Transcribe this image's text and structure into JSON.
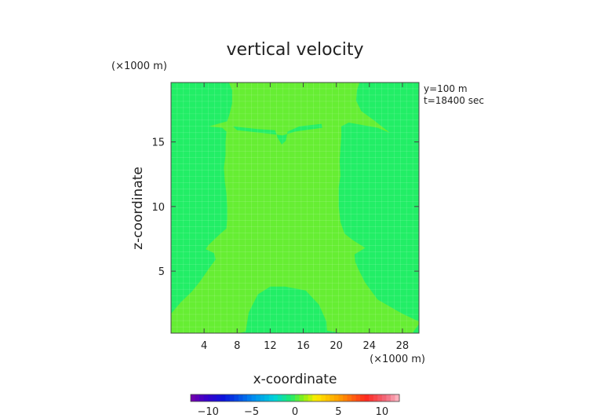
{
  "chart_data": {
    "type": "heatmap",
    "title": "vertical velocity",
    "xlabel": "x-coordinate",
    "ylabel": "z-coordinate",
    "x_unit": "(×1000 m)",
    "y_unit": "(×1000 m)",
    "annotations": [
      "y=100 m",
      "t=18400 sec"
    ],
    "xlim": [
      0,
      30
    ],
    "ylim": [
      0.2,
      19.6
    ],
    "x_ticks": [
      4,
      8,
      12,
      16,
      20,
      24,
      28
    ],
    "y_ticks": [
      5,
      10,
      15
    ],
    "colorbar": {
      "range": [
        -12,
        12
      ],
      "ticks": [
        -10,
        -5,
        0,
        5,
        10
      ]
    },
    "fields": [
      {
        "value": -0.5,
        "color": "#22ee66",
        "region": "background"
      },
      {
        "value": 0.5,
        "color": "#66ee33",
        "region": "central plume",
        "boundary": [
          [
            8.2,
            0.2
          ],
          [
            10.2,
            0.5
          ],
          [
            17.8,
            0.5
          ],
          [
            20.8,
            0.2
          ],
          [
            29.2,
            0.2
          ],
          [
            30,
            0.9
          ],
          [
            30,
            1.1
          ],
          [
            28,
            1.7
          ],
          [
            25,
            2.8
          ],
          [
            23.5,
            4.1
          ],
          [
            22.7,
            5.1
          ],
          [
            22.3,
            5.7
          ],
          [
            22.2,
            6.3
          ],
          [
            23.5,
            6.8
          ],
          [
            22,
            7.4
          ],
          [
            21,
            7.9
          ],
          [
            20.5,
            8.8
          ],
          [
            20.3,
            10
          ],
          [
            20.3,
            11.5
          ],
          [
            20.5,
            12.4
          ],
          [
            20.4,
            13.5
          ],
          [
            20.5,
            14.5
          ],
          [
            20.6,
            15.5
          ],
          [
            20.6,
            16.2
          ],
          [
            21.5,
            16.5
          ],
          [
            25,
            16.1
          ],
          [
            26.5,
            15.7
          ],
          [
            24.5,
            16.7
          ],
          [
            23,
            17.4
          ],
          [
            22.4,
            18.2
          ],
          [
            22.5,
            19
          ],
          [
            22.8,
            19.6
          ],
          [
            7,
            19.6
          ],
          [
            7.4,
            19
          ],
          [
            7.4,
            18
          ],
          [
            7.1,
            17.2
          ],
          [
            6.8,
            16.6
          ],
          [
            4.6,
            16.2
          ],
          [
            6.2,
            16.1
          ],
          [
            6.7,
            15.8
          ],
          [
            6.6,
            15
          ],
          [
            6.6,
            14
          ],
          [
            6.4,
            13
          ],
          [
            6.5,
            12
          ],
          [
            6.7,
            11
          ],
          [
            6.8,
            10
          ],
          [
            6.8,
            9
          ],
          [
            6.7,
            8.3
          ],
          [
            5.8,
            7.8
          ],
          [
            4.5,
            7
          ],
          [
            4.2,
            6.7
          ],
          [
            5.2,
            6.4
          ],
          [
            5.4,
            5.9
          ],
          [
            4.7,
            5.3
          ],
          [
            3.5,
            4.2
          ],
          [
            2.5,
            3.4
          ],
          [
            1.2,
            2.6
          ],
          [
            0,
            1.7
          ],
          [
            0,
            0.2
          ]
        ]
      },
      {
        "value": -0.5,
        "color": "#22ee66",
        "region": "upper lens",
        "boundary": [
          [
            7.5,
            16.2
          ],
          [
            10.5,
            16.0
          ],
          [
            12.6,
            15.9
          ],
          [
            12.9,
            15.3
          ],
          [
            13.4,
            14.8
          ],
          [
            13.9,
            15.1
          ],
          [
            14.1,
            15.8
          ],
          [
            15.5,
            16.2
          ],
          [
            18.2,
            16.4
          ],
          [
            18.3,
            16.1
          ],
          [
            15,
            15.8
          ],
          [
            13.5,
            15.5
          ],
          [
            11,
            15.7
          ],
          [
            8,
            15.9
          ]
        ]
      },
      {
        "value": -0.5,
        "color": "#22ee66",
        "region": "surface dome",
        "boundary": [
          [
            9.0,
            0.2
          ],
          [
            9.4,
            1.8
          ],
          [
            10.5,
            3.2
          ],
          [
            12.0,
            3.8
          ],
          [
            13.8,
            3.8
          ],
          [
            16.3,
            3.5
          ],
          [
            17.9,
            2.4
          ],
          [
            18.8,
            1.1
          ],
          [
            18.9,
            0.2
          ]
        ]
      }
    ]
  }
}
